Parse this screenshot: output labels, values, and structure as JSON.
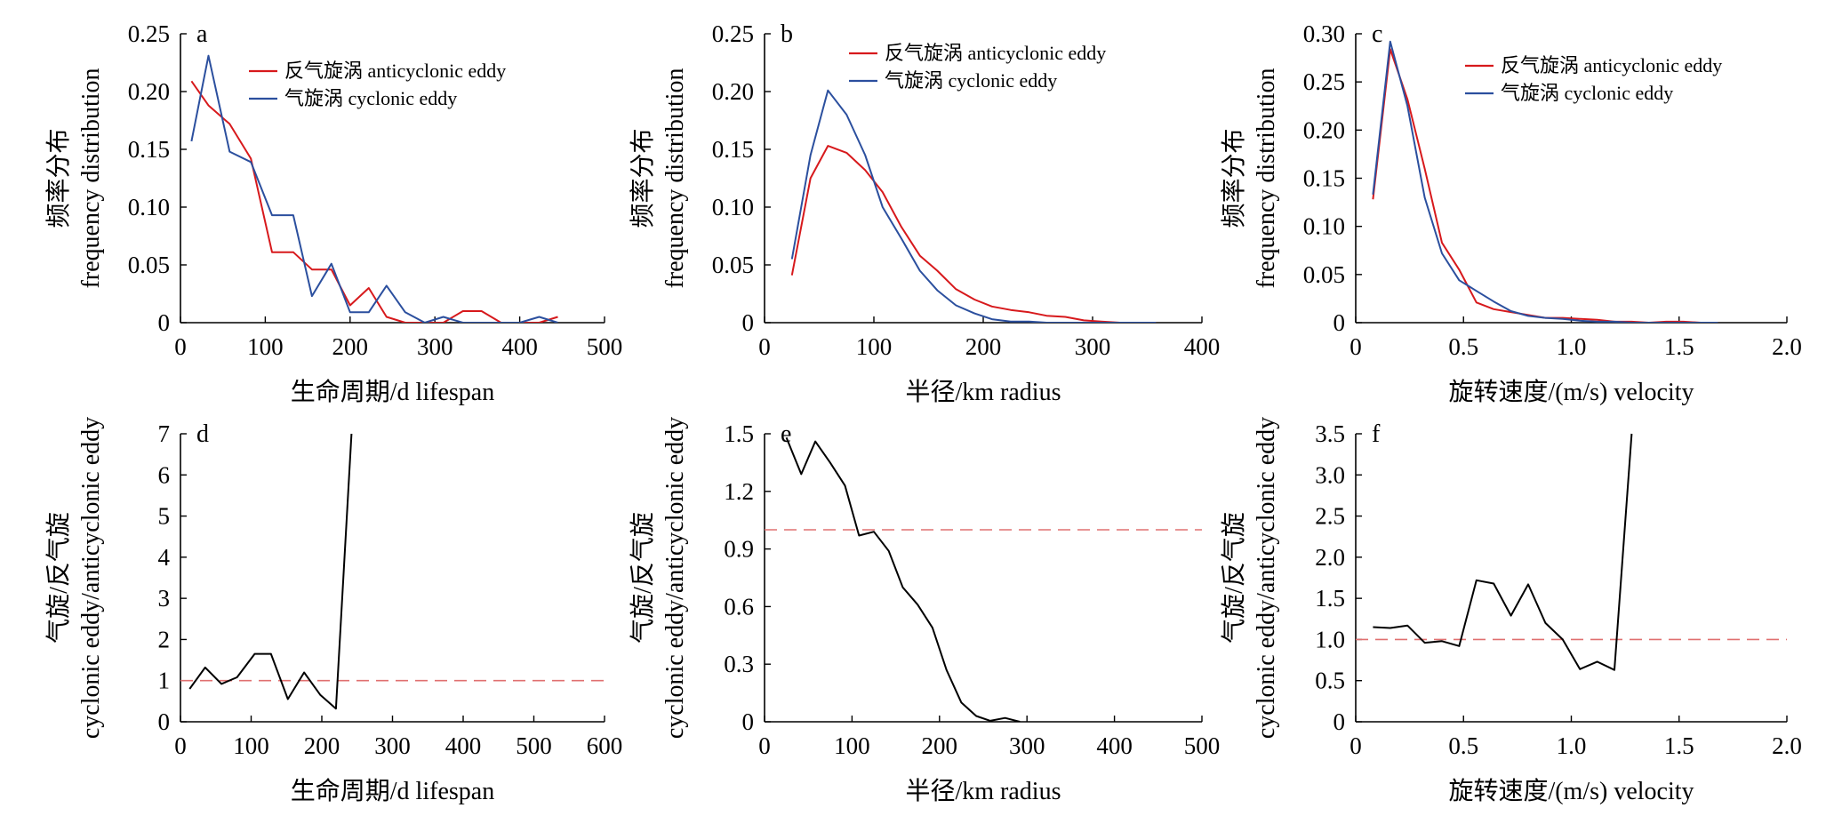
{
  "colors": {
    "anticyclonic": "#d7191c",
    "cyclonic": "#2b4f9e",
    "ratio": "#000000",
    "reference": "#e07070",
    "axis": "#000000"
  },
  "chart_data": [
    {
      "panel": "a",
      "type": "line",
      "xlabel": "生命周期/d lifespan",
      "ylabel": "频率分布",
      "ylabel2": "frequency distribution",
      "xlim": [
        0,
        500
      ],
      "ylim": [
        0,
        0.25
      ],
      "xticks": [
        0,
        100,
        200,
        300,
        400,
        500
      ],
      "yticks": [
        0,
        0.05,
        0.1,
        0.15,
        0.2,
        0.25
      ],
      "xtick_labels": [
        "0",
        "100",
        "200",
        "300",
        "400",
        "500"
      ],
      "ytick_labels": [
        "0",
        "0.05",
        "0.10",
        "0.15",
        "0.20",
        "0.25"
      ],
      "legend_position": "top-right",
      "series": [
        {
          "name": "反气旋涡 anticyclonic eddy",
          "color_key": "anticyclonic",
          "x": [
            13,
            33,
            58,
            83,
            108,
            133,
            155,
            178,
            200,
            222,
            243,
            265,
            288,
            310,
            333,
            355,
            378,
            400,
            423,
            445
          ],
          "y": [
            0.209,
            0.188,
            0.172,
            0.142,
            0.061,
            0.061,
            0.046,
            0.046,
            0.015,
            0.03,
            0.005,
            0.0,
            0.0,
            0.0,
            0.01,
            0.01,
            0.0,
            0.0,
            0.0,
            0.005
          ]
        },
        {
          "name": "气旋涡 cyclonic eddy",
          "color_key": "cyclonic",
          "x": [
            13,
            33,
            58,
            83,
            108,
            133,
            155,
            178,
            200,
            222,
            243,
            265,
            288,
            310,
            333,
            355,
            378,
            400,
            423,
            445
          ],
          "y": [
            0.157,
            0.231,
            0.148,
            0.139,
            0.093,
            0.093,
            0.023,
            0.051,
            0.009,
            0.009,
            0.032,
            0.009,
            0.0,
            0.005,
            0.0,
            0.0,
            0.0,
            0.0,
            0.005,
            0.0
          ]
        }
      ]
    },
    {
      "panel": "b",
      "type": "line",
      "xlabel": "半径/km radius",
      "ylabel": "频率分布",
      "ylabel2": "frequency distribution",
      "xlim": [
        0,
        400
      ],
      "ylim": [
        0,
        0.25
      ],
      "xticks": [
        0,
        100,
        200,
        300,
        400
      ],
      "yticks": [
        0,
        0.05,
        0.1,
        0.15,
        0.2,
        0.25
      ],
      "xtick_labels": [
        "0",
        "100",
        "200",
        "300",
        "400"
      ],
      "ytick_labels": [
        "0",
        "0.05",
        "0.10",
        "0.15",
        "0.20",
        "0.25"
      ],
      "legend_position": "top-right",
      "series": [
        {
          "name": "反气旋涡 anticyclonic eddy",
          "color_key": "anticyclonic",
          "x": [
            25,
            42,
            58,
            75,
            92,
            108,
            125,
            142,
            158,
            175,
            192,
            208,
            225,
            242,
            258,
            275,
            292,
            308,
            325,
            342,
            358
          ],
          "y": [
            0.041,
            0.125,
            0.153,
            0.147,
            0.132,
            0.113,
            0.083,
            0.058,
            0.045,
            0.029,
            0.02,
            0.014,
            0.011,
            0.009,
            0.006,
            0.005,
            0.002,
            0.001,
            0.0,
            0.0,
            0.0
          ]
        },
        {
          "name": "气旋涡 cyclonic eddy",
          "color_key": "cyclonic",
          "x": [
            25,
            42,
            58,
            75,
            92,
            108,
            125,
            142,
            158,
            175,
            192,
            208,
            225,
            242,
            258,
            275,
            292,
            308,
            325,
            342,
            358
          ],
          "y": [
            0.055,
            0.145,
            0.201,
            0.18,
            0.145,
            0.1,
            0.073,
            0.045,
            0.028,
            0.015,
            0.008,
            0.003,
            0.001,
            0.001,
            0.0,
            0.0,
            0.0,
            0.0,
            0.0,
            0.0,
            0.0
          ]
        }
      ]
    },
    {
      "panel": "c",
      "type": "line",
      "xlabel": "旋转速度/(m/s) velocity",
      "ylabel": "频率分布",
      "ylabel2": "frequency distribution",
      "xlim": [
        0,
        2.0
      ],
      "ylim": [
        0,
        0.3
      ],
      "xticks": [
        0,
        0.5,
        1.0,
        1.5,
        2.0
      ],
      "yticks": [
        0,
        0.05,
        0.1,
        0.15,
        0.2,
        0.25,
        0.3
      ],
      "xtick_labels": [
        "0",
        "0.5",
        "1.0",
        "1.5",
        "2.0"
      ],
      "ytick_labels": [
        "0",
        "0.05",
        "0.10",
        "0.15",
        "0.20",
        "0.25",
        "0.30"
      ],
      "legend_position": "top-right",
      "series": [
        {
          "name": "反气旋涡 anticyclonic eddy",
          "color_key": "anticyclonic",
          "x": [
            0.08,
            0.16,
            0.24,
            0.32,
            0.4,
            0.48,
            0.56,
            0.64,
            0.72,
            0.8,
            0.88,
            0.96,
            1.04,
            1.12,
            1.2,
            1.28,
            1.36,
            1.44,
            1.52,
            1.6,
            1.68
          ],
          "y": [
            0.128,
            0.284,
            0.232,
            0.16,
            0.083,
            0.055,
            0.021,
            0.014,
            0.011,
            0.008,
            0.005,
            0.005,
            0.004,
            0.003,
            0.001,
            0.001,
            0.0,
            0.001,
            0.001,
            0.0,
            0.0
          ]
        },
        {
          "name": "气旋涡 cyclonic eddy",
          "color_key": "cyclonic",
          "x": [
            0.08,
            0.16,
            0.24,
            0.32,
            0.4,
            0.48,
            0.56,
            0.64,
            0.72,
            0.8,
            0.88,
            0.96,
            1.04,
            1.12,
            1.2,
            1.28,
            1.36,
            1.44,
            1.52,
            1.6,
            1.68
          ],
          "y": [
            0.133,
            0.292,
            0.225,
            0.13,
            0.072,
            0.044,
            0.033,
            0.022,
            0.012,
            0.007,
            0.005,
            0.004,
            0.002,
            0.001,
            0.001,
            0.0,
            0.0,
            0.0,
            0.0,
            0.0,
            0.0
          ]
        }
      ]
    },
    {
      "panel": "d",
      "type": "line",
      "xlabel": "生命周期/d lifespan",
      "ylabel": "气旋/反气旋",
      "ylabel2": "cyclonic eddy/anticyclonic eddy",
      "xlim": [
        0,
        600
      ],
      "ylim": [
        0,
        7
      ],
      "xticks": [
        0,
        100,
        200,
        300,
        400,
        500,
        600
      ],
      "yticks": [
        0,
        1,
        2,
        3,
        4,
        5,
        6,
        7
      ],
      "xtick_labels": [
        "0",
        "100",
        "200",
        "300",
        "400",
        "500",
        "600"
      ],
      "ytick_labels": [
        "0",
        "1",
        "2",
        "3",
        "4",
        "5",
        "6",
        "7"
      ],
      "reference_y": 1,
      "series": [
        {
          "color_key": "ratio",
          "x": [
            13,
            35,
            58,
            80,
            105,
            128,
            152,
            175,
            198,
            220,
            242
          ],
          "y": [
            0.8,
            1.32,
            0.92,
            1.08,
            1.65,
            1.65,
            0.55,
            1.2,
            0.65,
            0.32,
            7.0
          ]
        }
      ]
    },
    {
      "panel": "e",
      "type": "line",
      "xlabel": "半径/km radius",
      "ylabel": "气旋/反气旋",
      "ylabel2": "cyclonic eddy/anticyclonic eddy",
      "xlim": [
        0,
        500
      ],
      "ylim": [
        0,
        1.5
      ],
      "xticks": [
        0,
        100,
        200,
        300,
        400,
        500
      ],
      "yticks": [
        0,
        0.3,
        0.6,
        0.9,
        1.2,
        1.5
      ],
      "xtick_labels": [
        "0",
        "100",
        "200",
        "300",
        "400",
        "500"
      ],
      "ytick_labels": [
        "0",
        "0.3",
        "0.6",
        "0.9",
        "1.2",
        "1.5"
      ],
      "reference_y": 1.0,
      "series": [
        {
          "color_key": "ratio",
          "x": [
            25,
            42,
            58,
            75,
            92,
            108,
            125,
            142,
            158,
            175,
            192,
            208,
            225,
            242,
            258,
            275,
            292
          ],
          "y": [
            1.48,
            1.29,
            1.46,
            1.35,
            1.23,
            0.97,
            0.99,
            0.89,
            0.7,
            0.61,
            0.49,
            0.27,
            0.1,
            0.03,
            0.005,
            0.02,
            0.0
          ]
        }
      ]
    },
    {
      "panel": "f",
      "type": "line",
      "xlabel": "旋转速度/(m/s) velocity",
      "ylabel": "气旋/反气旋",
      "ylabel2": "cyclonic eddy/anticyclonic eddy",
      "xlim": [
        0,
        2.0
      ],
      "ylim": [
        0,
        3.5
      ],
      "xticks": [
        0,
        0.5,
        1.0,
        1.5,
        2.0
      ],
      "yticks": [
        0,
        0.5,
        1.0,
        1.5,
        2.0,
        2.5,
        3.0,
        3.5
      ],
      "xtick_labels": [
        "0",
        "0.5",
        "1.0",
        "1.5",
        "2.0"
      ],
      "ytick_labels": [
        "0",
        "0.5",
        "1.0",
        "1.5",
        "2.0",
        "2.5",
        "3.0",
        "3.5"
      ],
      "reference_y": 1.0,
      "series": [
        {
          "color_key": "ratio",
          "x": [
            0.08,
            0.16,
            0.24,
            0.32,
            0.4,
            0.48,
            0.56,
            0.64,
            0.72,
            0.8,
            0.88,
            0.96,
            1.04,
            1.12,
            1.2,
            1.28
          ],
          "y": [
            1.15,
            1.14,
            1.17,
            0.96,
            0.98,
            0.92,
            1.72,
            1.68,
            1.29,
            1.67,
            1.2,
            1.0,
            0.64,
            0.73,
            0.63,
            3.5
          ]
        }
      ]
    }
  ]
}
